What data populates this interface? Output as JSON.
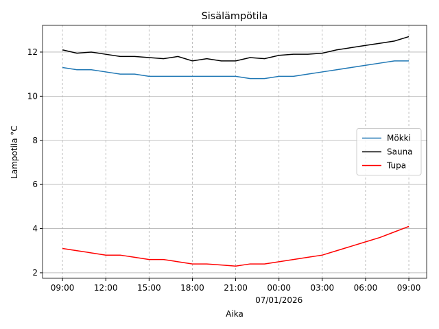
{
  "chart_data": {
    "type": "line",
    "title": "Sisälämpötila",
    "xlabel": "Aika",
    "ylabel": "Lampotila °C",
    "x": [
      "2026-01-06 09:00",
      "2026-01-06 10:00",
      "2026-01-06 11:00",
      "2026-01-06 12:00",
      "2026-01-06 13:00",
      "2026-01-06 14:00",
      "2026-01-06 15:00",
      "2026-01-06 16:00",
      "2026-01-06 17:00",
      "2026-01-06 18:00",
      "2026-01-06 19:00",
      "2026-01-06 20:00",
      "2026-01-06 21:00",
      "2026-01-06 22:00",
      "2026-01-06 23:00",
      "2026-01-07 00:00",
      "2026-01-07 01:00",
      "2026-01-07 02:00",
      "2026-01-07 03:00",
      "2026-01-07 04:00",
      "2026-01-07 05:00",
      "2026-01-07 06:00",
      "2026-01-07 07:00",
      "2026-01-07 08:00",
      "2026-01-07 09:00"
    ],
    "series": [
      {
        "name": "Mökki",
        "color": "#1f77b4",
        "values": [
          11.3,
          11.2,
          11.2,
          11.1,
          11.0,
          11.0,
          10.9,
          10.9,
          10.9,
          10.9,
          10.9,
          10.9,
          10.9,
          10.8,
          10.8,
          10.9,
          10.9,
          11.0,
          11.1,
          11.2,
          11.3,
          11.4,
          11.5,
          11.6,
          11.6
        ]
      },
      {
        "name": "Sauna",
        "color": "#000000",
        "values": [
          12.1,
          11.95,
          12.0,
          11.9,
          11.8,
          11.8,
          11.75,
          11.7,
          11.8,
          11.6,
          11.7,
          11.6,
          11.6,
          11.75,
          11.7,
          11.85,
          11.9,
          11.9,
          11.95,
          12.1,
          12.2,
          12.3,
          12.4,
          12.5,
          12.7
        ]
      },
      {
        "name": "Tupa",
        "color": "#ff0000",
        "values": [
          3.1,
          3.0,
          2.9,
          2.8,
          2.8,
          2.7,
          2.6,
          2.6,
          2.5,
          2.4,
          2.4,
          2.35,
          2.3,
          2.4,
          2.4,
          2.5,
          2.6,
          2.7,
          2.8,
          3.0,
          3.2,
          3.4,
          3.6,
          3.85,
          4.1
        ]
      }
    ],
    "xlim": [
      "2026-01-06 07:37",
      "2026-01-07 10:14"
    ],
    "xticks": [
      {
        "value": "2026-01-06 09:00",
        "label": "09:00"
      },
      {
        "value": "2026-01-06 12:00",
        "label": "12:00"
      },
      {
        "value": "2026-01-06 15:00",
        "label": "15:00"
      },
      {
        "value": "2026-01-06 18:00",
        "label": "18:00"
      },
      {
        "value": "2026-01-06 21:00",
        "label": "21:00"
      },
      {
        "value": "2026-01-07 00:00",
        "label": "00:00"
      },
      {
        "value": "2026-01-07 03:00",
        "label": "03:00"
      },
      {
        "value": "2026-01-07 06:00",
        "label": "06:00"
      },
      {
        "value": "2026-01-07 09:00",
        "label": "09:00"
      }
    ],
    "x_date_label": "07/01/2026",
    "ylim": [
      1.75,
      13.21
    ],
    "yticks": [
      2,
      4,
      6,
      8,
      10,
      12
    ],
    "grid": true,
    "legend": "center right"
  }
}
